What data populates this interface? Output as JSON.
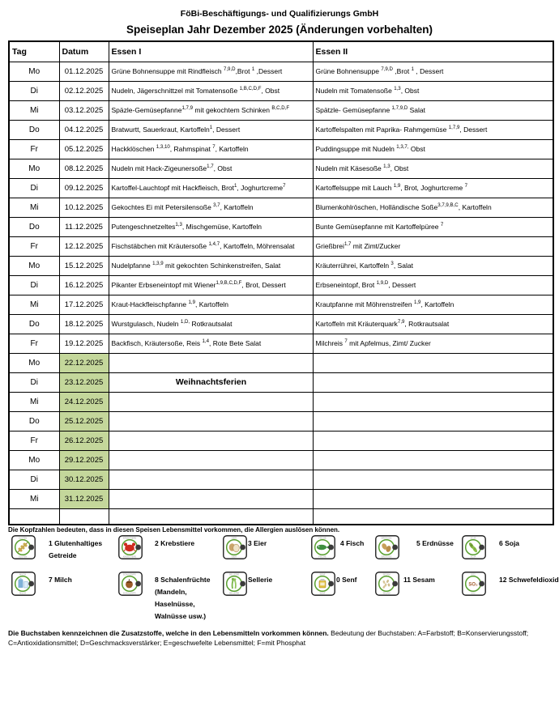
{
  "header": {
    "company": "FöBi-Beschäftigungs- und Qualifizierungs GmbH",
    "title": "Speiseplan Jahr Dezember 2025 (Änderungen vorbehalten)"
  },
  "table": {
    "columns": [
      "Tag",
      "Datum",
      "Essen I",
      "Essen II"
    ],
    "rows": [
      {
        "tag": "Mo",
        "datum": "01.12.2025",
        "green": false,
        "essen1": "Grüne Bohnensuppe mit Rindfleisch ^{7,9,D},Brot ^{1} ,Dessert",
        "essen2": "Grüne Bohnensuppe ^{7,9,D} ,Brot ^{1} , Dessert"
      },
      {
        "tag": "Di",
        "datum": "02.12.2025",
        "green": false,
        "essen1": "Nudeln, Jägerschnittzel mit Tomatensoße ^{1,B,C,D,F}, Obst",
        "essen2": "Nudeln mit Tomatensoße ^{1,3}, Obst"
      },
      {
        "tag": "Mi",
        "datum": "03.12.2025",
        "green": false,
        "essen1": "Späzle-Gemüsepfanne^{1,7,9} mit gekochtem Schinken ^{B,C,D,F}",
        "essen2": "Spätzle- Gemüsepfanne ^{1,7,9,D} Salat"
      },
      {
        "tag": "Do",
        "datum": "04.12.2025",
        "green": false,
        "essen1": "Bratwurtt, Sauerkraut, Kartoffeln^{1}, Dessert",
        "essen2": "Kartoffelspalten mit Paprika- Rahmgemüse ^{1,7,9}, Dessert"
      },
      {
        "tag": "Fr",
        "datum": "05.12.2025",
        "green": false,
        "essen1": "Hackklöschen ^{1,3,10}, Rahmspinat ^{7}, Kartoffeln",
        "essen2": "Puddingsuppe mit Nudeln ^{1,3,7,} Obst"
      },
      {
        "tag": "Mo",
        "datum": "08.12.2025",
        "green": false,
        "essen1": "Nudeln mit Hack-Zigeunersoße^{1,7}, Obst",
        "essen2": "Nudeln mit Käsesoße ^{1,3}, Obst"
      },
      {
        "tag": "Di",
        "datum": "09.12.2025",
        "green": false,
        "essen1": "Kartoffel-Lauchtopf mit Hackfleisch, Brot^{1}, Joghurtcreme^{7}",
        "essen2": "Kartoffelsuppe mit Lauch ^{1,9}, Brot, Joghurtcreme ^{7}"
      },
      {
        "tag": "Mi",
        "datum": "10.12.2025",
        "green": false,
        "essen1": "Gekochtes Ei mit Petersilensoße ^{3,7}, Kartoffeln",
        "essen2": "Blumenkohlröschen, Holländische Soße^{3,7,9,B,C}, Kartoffeln"
      },
      {
        "tag": "Do",
        "datum": "11.12.2025",
        "green": false,
        "essen1": "Putengeschnetzeltes^{1,3}, Mischgemüse, Kartoffeln",
        "essen2": "Bunte Gemüsepfanne mit Kartoffelpüree ^{7}"
      },
      {
        "tag": "Fr",
        "datum": "12.12.2025",
        "green": false,
        "essen1": "Fischstäbchen mit Kräutersoße ^{1,4,7}, Kartoffeln, Möhrensalat",
        "essen2": "Grießbrei^{1,7} mit Zimt/Zucker"
      },
      {
        "tag": "Mo",
        "datum": "15.12.2025",
        "green": false,
        "essen1": "Nudelpfanne ^{1,3,9} mit gekochten Schinkenstreifen, Salat",
        "essen2": "Kräuterrührei, Kartoffeln ^{3}, Salat"
      },
      {
        "tag": "Di",
        "datum": "16.12.2025",
        "green": false,
        "essen1": "Pikanter Erbseneintopf mit Wiener^{1,9,B,C,D,F}, Brot, Dessert",
        "essen2": "Erbseneintopf, Brot ^{1,9,D}, Dessert"
      },
      {
        "tag": "Mi",
        "datum": "17.12.2025",
        "green": false,
        "essen1": "Kraut-Hackfleischpfanne ^{1,9}, Kartoffeln",
        "essen2": "Krautpfanne mit Möhrenstreifen ^{1,9}, Kartoffeln"
      },
      {
        "tag": "Do",
        "datum": "18.12.2025",
        "green": false,
        "essen1": "Wurstgulasch, Nudeln ^{1,D,} Rotkrautsalat",
        "essen2": "Kartoffeln mit Kräuterquark^{7,9}, Rotkrautsalat"
      },
      {
        "tag": "Fr",
        "datum": "19.12.2025",
        "green": false,
        "essen1": "Backfisch, Kräutersoße, Reis ^{1,4}, Rote Bete Salat",
        "essen2": "Milchreis ^{7} mit Apfelmus, Zimt/ Zucker"
      },
      {
        "tag": "Mo",
        "datum": "22.12.2025",
        "green": true,
        "essen1": "",
        "essen2": ""
      },
      {
        "tag": "Di",
        "datum": "23.12.2025",
        "green": true,
        "essen1": "",
        "essen2": "",
        "note": "Weihnachtsferien"
      },
      {
        "tag": "Mi",
        "datum": "24.12.2025",
        "green": true,
        "essen1": "",
        "essen2": ""
      },
      {
        "tag": "Do",
        "datum": "25.12.2025",
        "green": true,
        "essen1": "",
        "essen2": ""
      },
      {
        "tag": "Fr",
        "datum": "26.12.2025",
        "green": true,
        "essen1": "",
        "essen2": ""
      },
      {
        "tag": "Mo",
        "datum": "29.12.2025",
        "green": true,
        "essen1": "",
        "essen2": ""
      },
      {
        "tag": "Di",
        "datum": "30.12.2025",
        "green": true,
        "essen1": "",
        "essen2": ""
      },
      {
        "tag": "Mi",
        "datum": "31.12.2025",
        "green": true,
        "essen1": "",
        "essen2": ""
      },
      {
        "tag": "",
        "datum": "",
        "green": false,
        "essen1": "",
        "essen2": "",
        "empty": true
      }
    ]
  },
  "notes": {
    "allergen_intro": "Die Kopfzahlen bedeuten, dass in diesen Speisen Lebensmittel vorkommen, die Allergien auslösen können.",
    "additives_bold": "Die Buchstaben kennzeichnen die Zusatzstoffe, welche in den Lebensmitteln vorkommen können.",
    "additives_rest": " Bedeutung der Buchstaben: A=Farbstoff; B=Konservierungsstoff; C=Antioxidationsmittel; D=Geschmacksverstärker; E=geschwefelte Lebensmittel; F=mit Phosphat"
  },
  "allergens": [
    {
      "icon": "wheat-icon",
      "caption": "GLUTEN",
      "label": "1 Glutenhaltiges\nGetreide"
    },
    {
      "icon": "crab-icon",
      "caption": "KREBSTIERE",
      "label": "2 Krebstiere"
    },
    {
      "icon": "egg-icon",
      "caption": "EIER",
      "label": "3 Eier"
    },
    {
      "icon": "fish-icon",
      "caption": "FISCHE",
      "label": "4 Fisch"
    },
    {
      "icon": "peanut-icon",
      "caption": "ERDNUSS",
      "label": "5 Erdnüsse"
    },
    {
      "icon": "soy-icon",
      "caption": "SOJA",
      "label": "6 Soja"
    },
    {
      "icon": "milk-icon",
      "caption": "MILCH",
      "label": "7 Milch"
    },
    {
      "icon": "tree-nuts-icon",
      "caption": "SCHALENFR.",
      "label": "8 Schalenfrüchte\n(Mandeln,\nHaselnüsse,\nWalnüsse usw.)"
    },
    {
      "icon": "celery-icon",
      "caption": "SELLERIE",
      "label": "Sellerie"
    },
    {
      "icon": "mustard-icon",
      "caption": "SENF",
      "label": "0 Senf"
    },
    {
      "icon": "sesame-icon",
      "caption": "SESAM",
      "label": "11 Sesam"
    },
    {
      "icon": "sulfur-dioxide-icon",
      "caption": "SO2",
      "label": "12 Schwefeldioxid"
    }
  ],
  "colors": {
    "holiday_green": "#c4d79b",
    "border": "#000000",
    "icon_circle_green": "#59a02f"
  }
}
